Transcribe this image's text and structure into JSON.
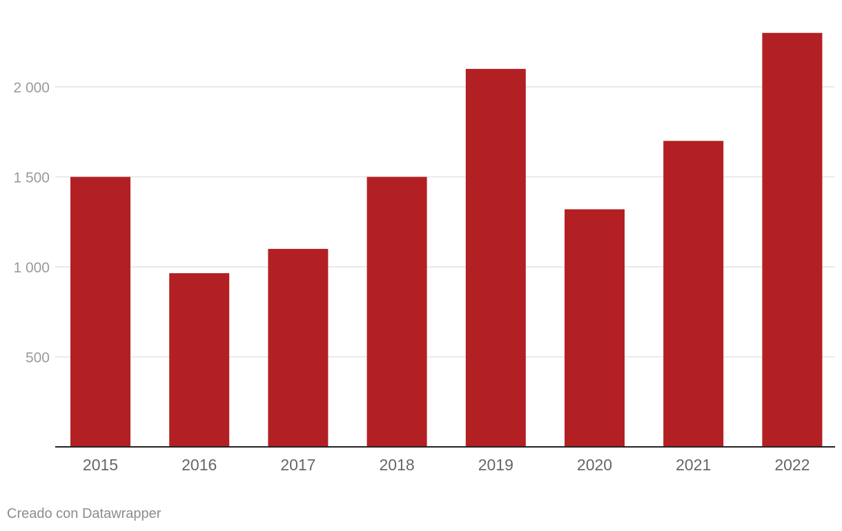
{
  "chart_data": {
    "type": "bar",
    "categories": [
      "2015",
      "2016",
      "2017",
      "2018",
      "2019",
      "2020",
      "2021",
      "2022"
    ],
    "values": [
      1500,
      965,
      1100,
      1500,
      2100,
      1320,
      1700,
      2300
    ],
    "yticks": [
      500,
      1000,
      1500,
      2000
    ],
    "ytick_labels": [
      "500",
      "1 000",
      "1 500",
      "2 000"
    ],
    "ylim": [
      0,
      2300
    ],
    "grid": true,
    "bar_color": "#b22024",
    "title": "",
    "xlabel": "",
    "ylabel": ""
  },
  "footer": {
    "credit": "Creado con Datawrapper"
  }
}
